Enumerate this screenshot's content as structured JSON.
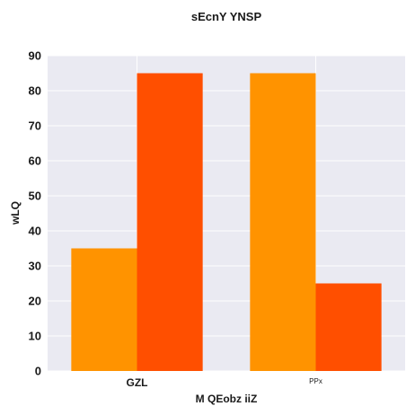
{
  "chart_data": {
    "type": "bar",
    "title": "sEcnY YNSP",
    "xlabel": "M QEobz iiZ",
    "ylabel": "wLQ",
    "categories": [
      "GZL",
      "PPx"
    ],
    "series": [
      {
        "values": [
          35,
          85
        ],
        "color": "#FF9300"
      },
      {
        "values": [
          85,
          25
        ],
        "color": "#FF4F00"
      }
    ],
    "ylim": [
      0,
      90
    ],
    "yticks": [
      0,
      10,
      20,
      30,
      40,
      50,
      60,
      70,
      80,
      90
    ],
    "grid": true,
    "legend": "none",
    "background": "#EAEAF2"
  }
}
